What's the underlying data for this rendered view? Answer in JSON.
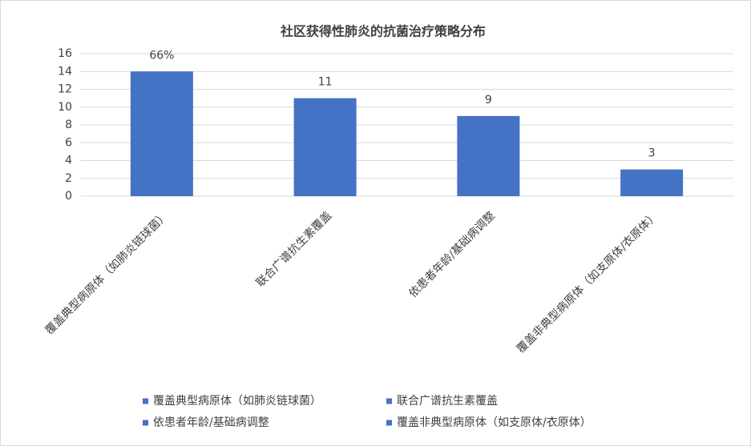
{
  "chart_data": {
    "type": "bar",
    "title": "社区获得性肺炎的抗菌治疗策略分布",
    "categories": [
      "覆盖典型病原体（如肺炎链球菌）",
      "联合广谱抗生素覆盖",
      "依患者年龄/基础病调整",
      "覆盖非典型病原体（如支原体/衣原体）"
    ],
    "values": [
      14,
      11,
      9,
      3
    ],
    "annotations": [
      "66%"
    ],
    "color": "#4472c4",
    "ylim": [
      0,
      16
    ],
    "yticks": [
      0,
      2,
      4,
      6,
      8,
      10,
      12,
      14,
      16
    ],
    "grid": true,
    "legend": "bottom"
  }
}
